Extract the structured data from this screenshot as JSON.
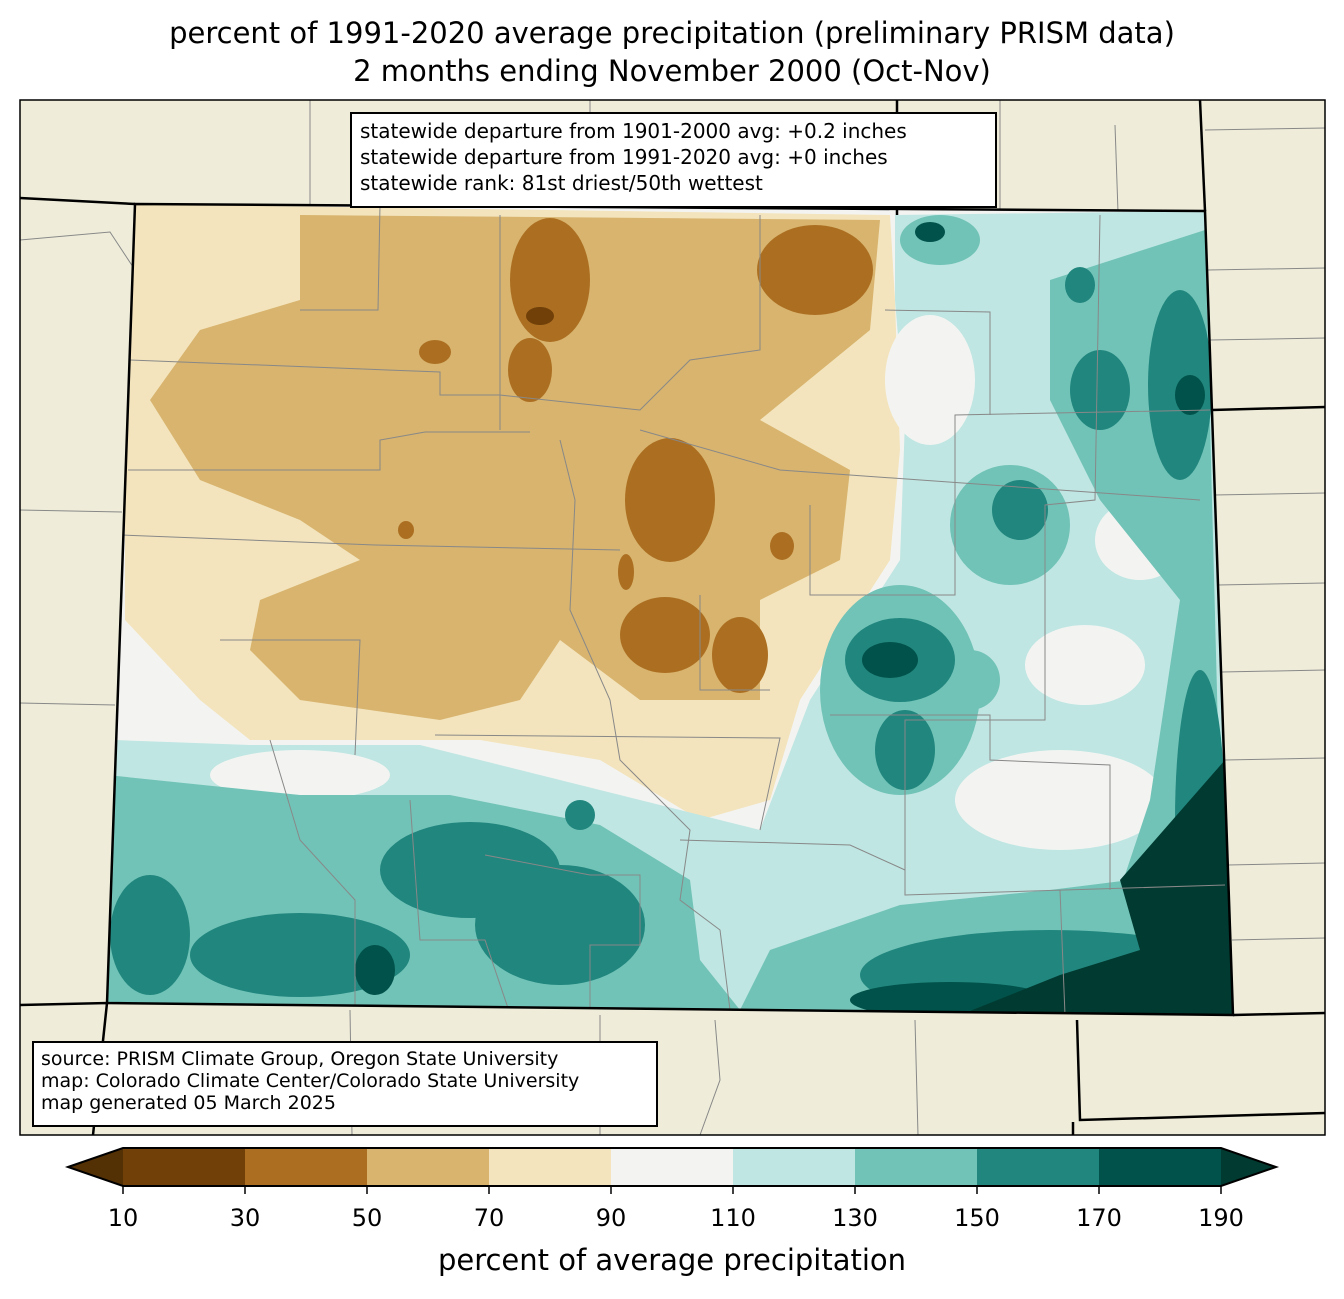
{
  "title": {
    "line1": "percent of 1991-2020 average precipitation (preliminary PRISM data)",
    "line2": "2 months ending November 2000 (Oct-Nov)"
  },
  "stats": {
    "line1": "statewide departure from 1901-2000 avg: +0.2 inches",
    "line2": "statewide departure from 1991-2020 avg: +0 inches",
    "line3": "statewide rank: 81st driest/50th wettest"
  },
  "source": {
    "line1": "source: PRISM Climate Group, Oregon State University",
    "line2": "map: Colorado Climate Center/Colorado State University",
    "line3": "map generated 05 March 2025"
  },
  "colorbar": {
    "label": "percent of average precipitation",
    "ticks": [
      "10",
      "30",
      "50",
      "70",
      "90",
      "110",
      "130",
      "150",
      "170",
      "190"
    ],
    "colors": [
      "#543005",
      "#704008",
      "#ac6f22",
      "#d8b46e",
      "#f3e4bd",
      "#f3f4f2",
      "#bfe6e2",
      "#71c3b7",
      "#21867e",
      "#01524a",
      "#003a30"
    ]
  },
  "map": {
    "background_color": "#efedda",
    "state": "Colorado"
  }
}
